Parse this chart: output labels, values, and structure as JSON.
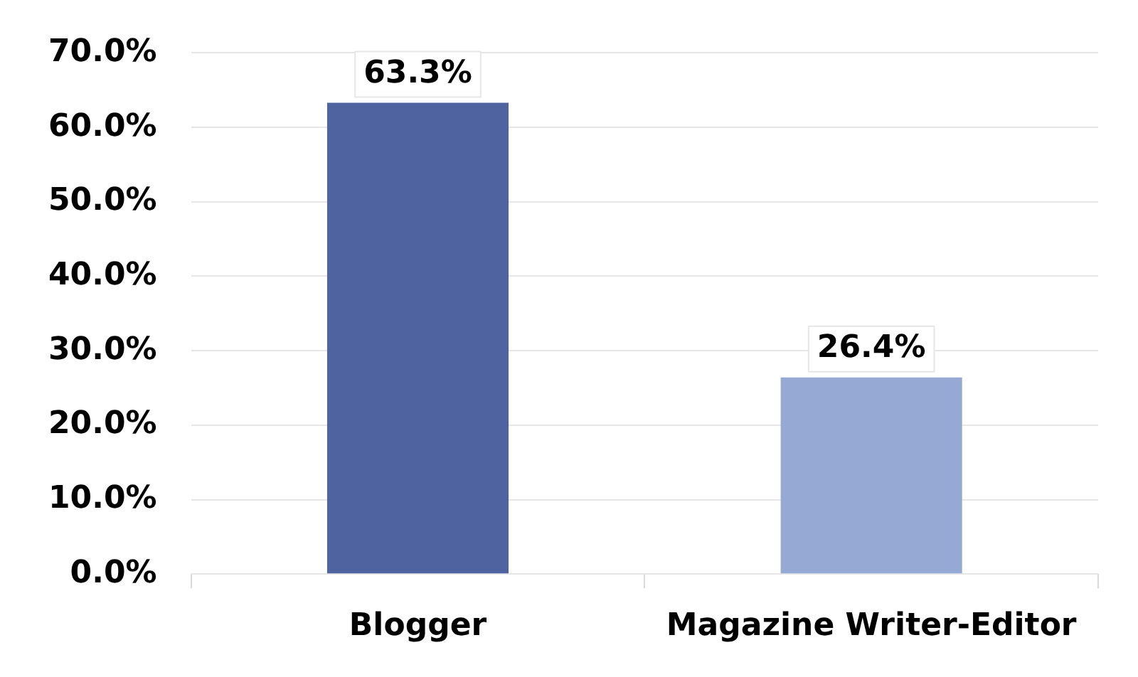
{
  "chart_data": {
    "type": "bar",
    "categories": [
      "Blogger",
      "Magazine Writer-Editor"
    ],
    "values": [
      63.3,
      26.4
    ],
    "colors": [
      "#4f63a0",
      "#96a9d4"
    ],
    "value_labels": [
      "63.3%",
      "26.4%"
    ],
    "ylim": [
      0,
      70
    ],
    "yticks": [
      {
        "value": 0,
        "label": "0.0%"
      },
      {
        "value": 10,
        "label": "10.0%"
      },
      {
        "value": 20,
        "label": "20.0%"
      },
      {
        "value": 30,
        "label": "30.0%"
      },
      {
        "value": 40,
        "label": "40.0%"
      },
      {
        "value": 50,
        "label": "50.0%"
      },
      {
        "value": 60,
        "label": "60.0%"
      },
      {
        "value": 70,
        "label": "70.0%"
      }
    ],
    "grid": "y",
    "legend": false
  }
}
